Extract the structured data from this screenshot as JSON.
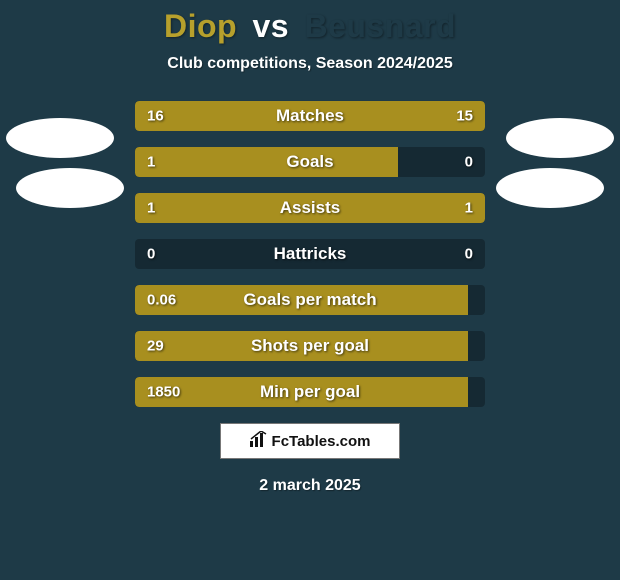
{
  "colors": {
    "page_bg": "#1e3a47",
    "text_light": "#ffffff",
    "player1_title": "#b7a02c",
    "vs_title": "#ffffff",
    "player2_title": "#1e3a47",
    "bar_left": "#a88f1f",
    "bar_right": "#a88f1f",
    "bar_track": "rgba(0,0,0,0.28)",
    "avatar_left": "#ffffff",
    "avatar_right": "#ffffff",
    "badge_bg": "#ffffff",
    "badge_border": "#777777",
    "badge_text": "#111111"
  },
  "title": {
    "player1": "Diop",
    "vs": "vs",
    "player2": "Beusnard"
  },
  "subtitle": "Club competitions, Season 2024/2025",
  "date": "2 march 2025",
  "badge": {
    "icon_name": "chart-icon",
    "text": "FcTables.com"
  },
  "bars": [
    {
      "label": "Matches",
      "left": "16",
      "right": "15",
      "left_pct": 52,
      "right_pct": 48
    },
    {
      "label": "Goals",
      "left": "1",
      "right": "0",
      "left_pct": 75,
      "right_pct": 0
    },
    {
      "label": "Assists",
      "left": "1",
      "right": "1",
      "left_pct": 50,
      "right_pct": 50
    },
    {
      "label": "Hattricks",
      "left": "0",
      "right": "0",
      "left_pct": 0,
      "right_pct": 0
    },
    {
      "label": "Goals per match",
      "left": "0.06",
      "right": "",
      "left_pct": 95,
      "right_pct": 0
    },
    {
      "label": "Shots per goal",
      "left": "29",
      "right": "",
      "left_pct": 95,
      "right_pct": 0
    },
    {
      "label": "Min per goal",
      "left": "1850",
      "right": "",
      "left_pct": 95,
      "right_pct": 0
    }
  ]
}
